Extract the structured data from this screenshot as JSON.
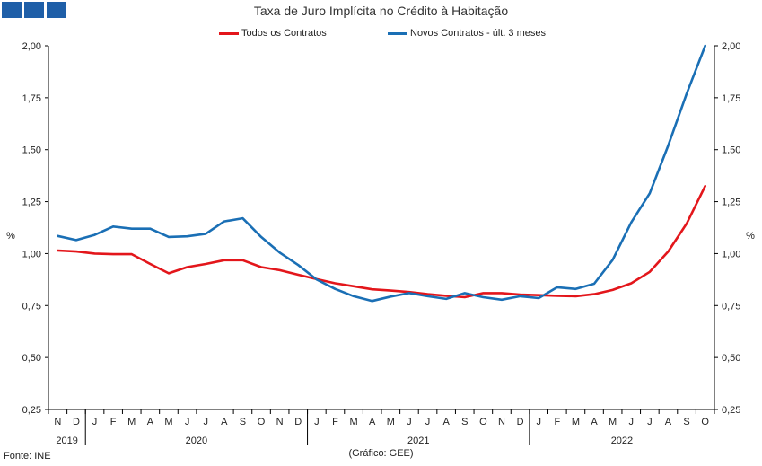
{
  "chart_data": {
    "type": "line",
    "title": "Taxa de Juro Implícita no Crédito à Habitação",
    "source": "Fonte: INE",
    "credit": "(Gráfico: GEE)",
    "ylabel_left": "%",
    "ylabel_right": "%",
    "ylim": [
      0.25,
      2.0
    ],
    "yticks": [
      "0,25",
      "0,50",
      "0,75",
      "1,00",
      "1,25",
      "1,50",
      "1,75",
      "2,00"
    ],
    "ytick_values": [
      0.25,
      0.5,
      0.75,
      1.0,
      1.25,
      1.5,
      1.75,
      2.0
    ],
    "grid": false,
    "legend_position": "top",
    "months": [
      "N",
      "D",
      "J",
      "F",
      "M",
      "A",
      "M",
      "J",
      "J",
      "A",
      "S",
      "O",
      "N",
      "D",
      "J",
      "F",
      "M",
      "A",
      "M",
      "J",
      "J",
      "A",
      "S",
      "O",
      "N",
      "D",
      "J",
      "F",
      "M",
      "A",
      "M",
      "J",
      "J",
      "A",
      "S",
      "O"
    ],
    "years": [
      {
        "label": "2019",
        "start": 0,
        "end": 2
      },
      {
        "label": "2020",
        "start": 2,
        "end": 14
      },
      {
        "label": "2021",
        "start": 14,
        "end": 26
      },
      {
        "label": "2022",
        "start": 26,
        "end": 36
      }
    ],
    "series": [
      {
        "name": "Todos os Contratos",
        "color": "#e3161b",
        "values": [
          1.015,
          1.01,
          1.0,
          0.997,
          0.997,
          0.95,
          0.905,
          0.935,
          0.95,
          0.968,
          0.968,
          0.935,
          0.92,
          0.898,
          0.877,
          0.857,
          0.843,
          0.828,
          0.822,
          0.815,
          0.805,
          0.797,
          0.79,
          0.81,
          0.81,
          0.803,
          0.8,
          0.797,
          0.795,
          0.805,
          0.825,
          0.857,
          0.912,
          1.01,
          1.145,
          1.325
        ]
      },
      {
        "name": "Novos Contratos - últ. 3 meses",
        "color": "#1a6fb5",
        "values": [
          1.085,
          1.065,
          1.09,
          1.13,
          1.12,
          1.12,
          1.08,
          1.083,
          1.095,
          1.155,
          1.17,
          1.08,
          1.005,
          0.945,
          0.875,
          0.83,
          0.795,
          0.772,
          0.793,
          0.81,
          0.795,
          0.782,
          0.81,
          0.79,
          0.778,
          0.795,
          0.786,
          0.838,
          0.83,
          0.855,
          0.97,
          1.15,
          1.29,
          1.52,
          1.77,
          2.0
        ]
      }
    ]
  }
}
